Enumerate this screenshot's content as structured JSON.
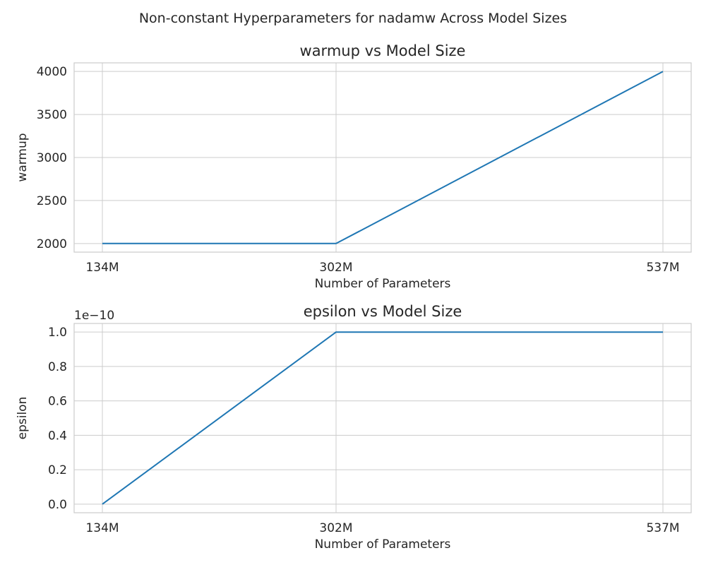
{
  "figure": {
    "suptitle": "Non-constant Hyperparameters for nadamw Across Model Sizes"
  },
  "chart_data": [
    {
      "type": "line",
      "title": "warmup vs Model Size",
      "xlabel": "Number of Parameters",
      "ylabel": "warmup",
      "categories": [
        "134M",
        "302M",
        "537M"
      ],
      "x": [
        134,
        302,
        537
      ],
      "series": [
        {
          "values": [
            2000,
            2000,
            4000
          ],
          "color": "#1f77b4"
        }
      ],
      "ylim": [
        1900,
        4100
      ],
      "yticks": [
        2000,
        2500,
        3000,
        3500,
        4000
      ],
      "ytick_labels": [
        "2000",
        "2500",
        "3000",
        "3500",
        "4000"
      ],
      "offset_text": "",
      "grid": true
    },
    {
      "type": "line",
      "title": "epsilon vs Model Size",
      "xlabel": "Number of Parameters",
      "ylabel": "epsilon",
      "categories": [
        "134M",
        "302M",
        "537M"
      ],
      "x": [
        134,
        302,
        537
      ],
      "series": [
        {
          "values": [
            1e-15,
            1e-10,
            1e-10
          ],
          "color": "#1f77b4"
        }
      ],
      "ylim": [
        -5e-12,
        1.05e-10
      ],
      "yticks": [
        0,
        2e-11,
        4e-11,
        6e-11,
        8e-11,
        1e-10
      ],
      "ytick_labels": [
        "0.0",
        "0.2",
        "0.4",
        "0.6",
        "0.8",
        "1.0"
      ],
      "offset_text": "1e−10",
      "grid": true
    }
  ]
}
